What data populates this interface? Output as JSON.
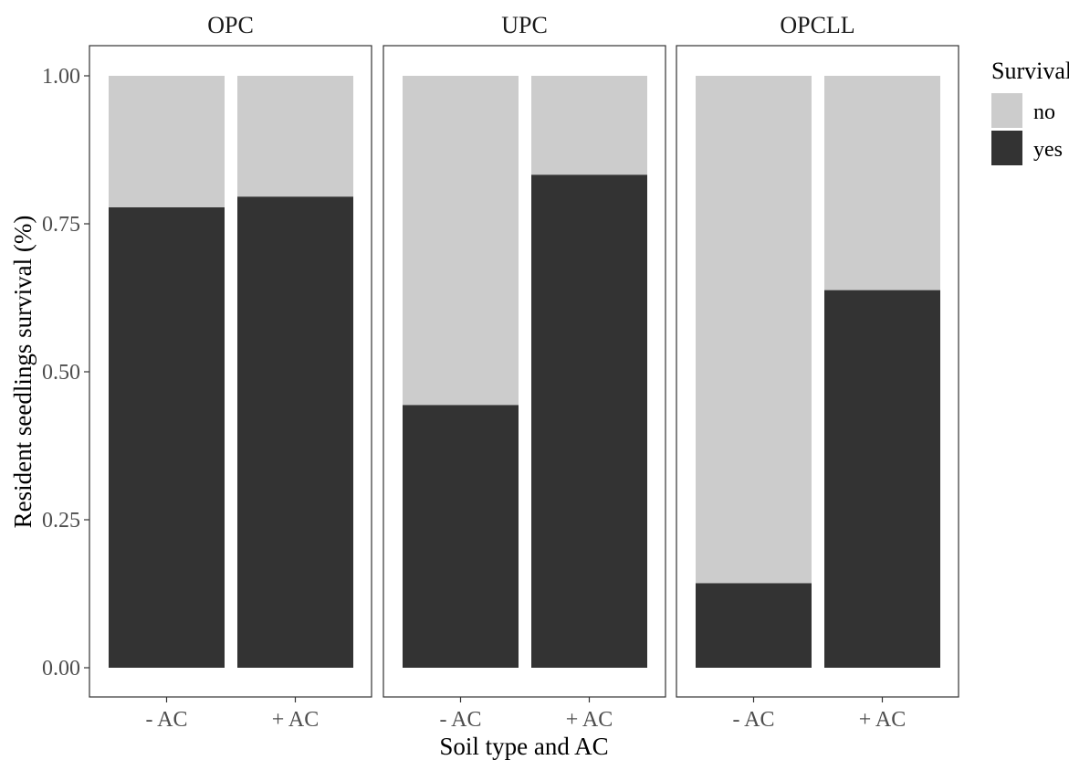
{
  "chart_data": {
    "type": "bar",
    "stacked": true,
    "facets": [
      "OPC",
      "UPC",
      "OPCLL"
    ],
    "categories": [
      "- AC",
      "+ AC"
    ],
    "series": [
      {
        "name": "no",
        "color": "#cccccc",
        "values": {
          "OPC": [
            0.222,
            0.204
          ],
          "UPC": [
            0.556,
            0.167
          ],
          "OPCLL": [
            0.857,
            0.362
          ]
        }
      },
      {
        "name": "yes",
        "color": "#333333",
        "values": {
          "OPC": [
            0.778,
            0.796
          ],
          "UPC": [
            0.444,
            0.833
          ],
          "OPCLL": [
            0.143,
            0.638
          ]
        }
      }
    ],
    "xlabel": "Soil type and AC",
    "ylabel": "Resident seedlings survival (%)",
    "ylim": [
      0,
      1
    ],
    "yticks": [
      "0.00",
      "0.25",
      "0.50",
      "0.75",
      "1.00"
    ],
    "grid": false,
    "legend_title": "Survival",
    "legend_position": "right"
  }
}
